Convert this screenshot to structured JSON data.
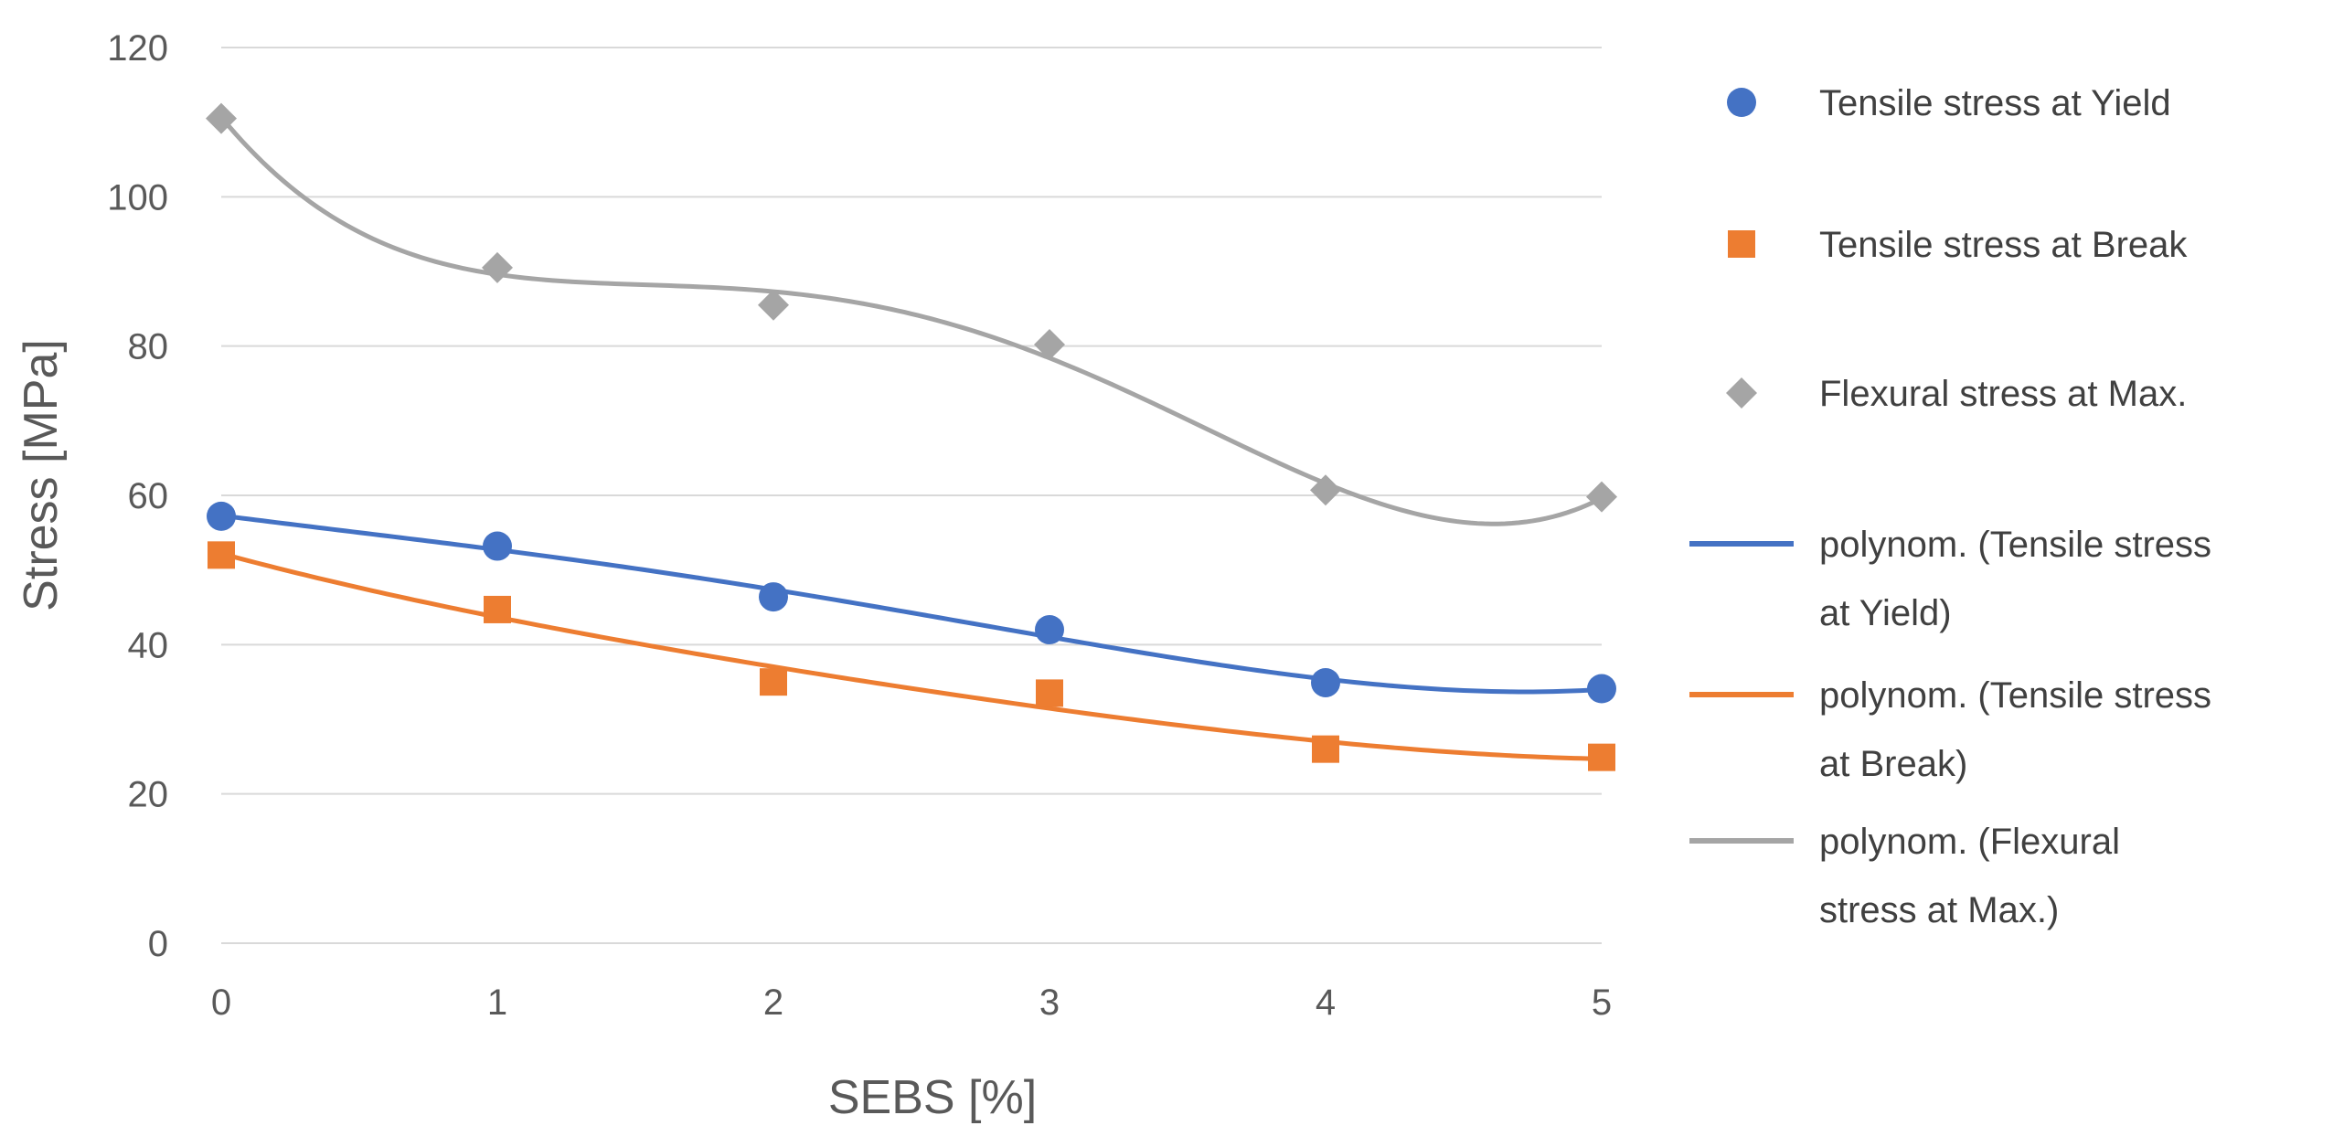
{
  "chart_data": {
    "type": "scatter",
    "title": "",
    "xlabel": "SEBS [%]",
    "ylabel": "Stress [MPa]",
    "xlim": [
      0,
      5
    ],
    "ylim": [
      0,
      120
    ],
    "x_ticks": [
      "0",
      "1",
      "2",
      "3",
      "4",
      "5"
    ],
    "y_ticks": [
      "0",
      "20",
      "40",
      "60",
      "80",
      "100",
      "120"
    ],
    "grid": "horizontal",
    "legend_position": "right",
    "x": [
      0,
      1,
      2,
      3,
      4,
      5
    ],
    "series": [
      {
        "name": "Tensile stress at Yield",
        "marker": "circle",
        "color": "#4472C4",
        "values": [
          57.2,
          53.2,
          46.4,
          42.0,
          34.9,
          34.1
        ],
        "trendline": {
          "label_lines": [
            "polynom. (Tensile stress",
            "at Yield)"
          ],
          "degree": 4
        }
      },
      {
        "name": "Tensile stress at Break",
        "marker": "square",
        "color": "#ED7D31",
        "values": [
          52.0,
          44.7,
          35.0,
          33.5,
          26.0,
          24.9
        ],
        "trendline": {
          "label_lines": [
            "polynom. (Tensile stress",
            "at Break)"
          ],
          "degree": 4
        }
      },
      {
        "name": "Flexural stress at Max.",
        "marker": "diamond",
        "color": "#A5A5A5",
        "values": [
          110.5,
          90.5,
          85.5,
          80.2,
          60.7,
          59.8
        ],
        "trendline": {
          "label_lines": [
            "polynom. (Flexural",
            "stress at Max.)"
          ],
          "degree": 4
        }
      }
    ]
  }
}
